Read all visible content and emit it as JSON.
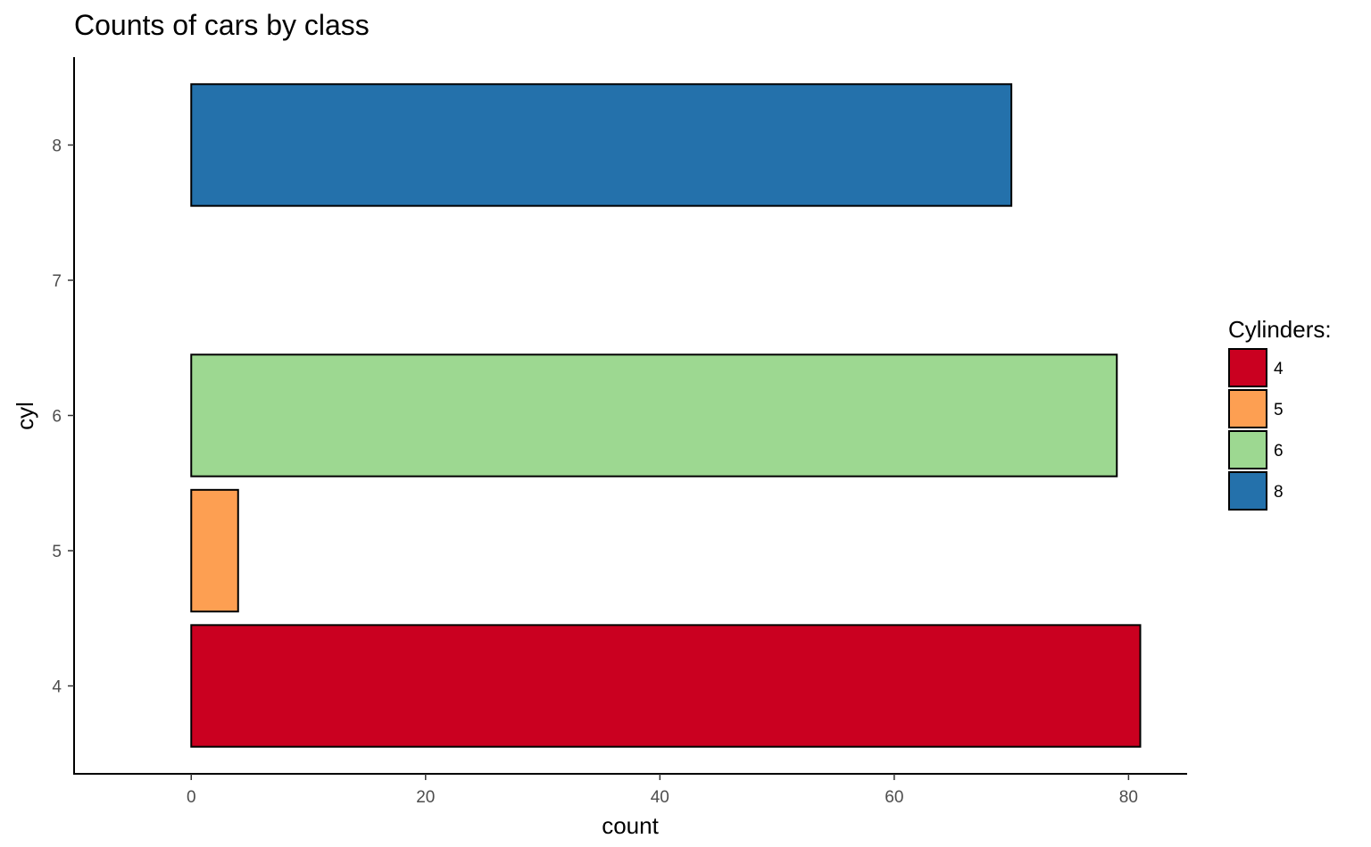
{
  "chart_data": {
    "type": "bar",
    "orientation": "horizontal",
    "title": "Counts of cars by class",
    "xlabel": "count",
    "ylabel": "cyl",
    "xlim": [
      -10,
      85
    ],
    "ylim": [
      3.35,
      8.65
    ],
    "x_ticks": [
      "0",
      "20",
      "40",
      "60",
      "80"
    ],
    "y_ticks": [
      "4",
      "5",
      "6",
      "7",
      "8"
    ],
    "grid": false,
    "bars": [
      {
        "category": 4,
        "value": 81,
        "color": "#ca0020"
      },
      {
        "category": 5,
        "value": 4,
        "color": "#fd9f52"
      },
      {
        "category": 6,
        "value": 79,
        "color": "#9dd891"
      },
      {
        "category": 8,
        "value": 70,
        "color": "#2471ab"
      }
    ],
    "legend": {
      "title": "Cylinders:",
      "position": "right",
      "entries": [
        {
          "label": "4",
          "color": "#ca0020"
        },
        {
          "label": "5",
          "color": "#fd9f52"
        },
        {
          "label": "6",
          "color": "#9dd891"
        },
        {
          "label": "8",
          "color": "#2471ab"
        }
      ]
    }
  }
}
